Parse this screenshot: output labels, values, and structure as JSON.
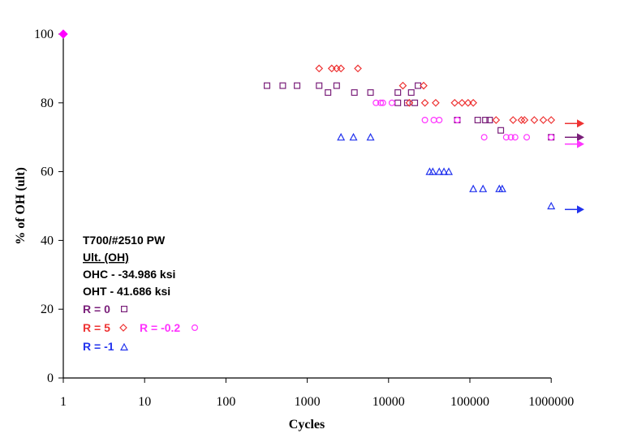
{
  "chart_data": {
    "type": "scatter",
    "title": "",
    "xlabel": "Cycles",
    "ylabel": "% of OH (ult)",
    "xscale": "log",
    "xlim": [
      1,
      1000000
    ],
    "ylim": [
      0,
      100
    ],
    "x_ticks": [
      "1",
      "10",
      "100",
      "1000",
      "10000",
      "100000",
      "1000000"
    ],
    "y_ticks": [
      "0",
      "20",
      "40",
      "60",
      "80",
      "100"
    ],
    "grid": false,
    "legend_position": "lower-left",
    "series": [
      {
        "name": "R = 0",
        "marker": "square",
        "color": "#7a1f7a",
        "points": [
          [
            320,
            85
          ],
          [
            500,
            85
          ],
          [
            750,
            85
          ],
          [
            1400,
            85
          ],
          [
            1800,
            83
          ],
          [
            2300,
            85
          ],
          [
            3800,
            83
          ],
          [
            6000,
            83
          ],
          [
            13000,
            83
          ],
          [
            13000,
            80
          ],
          [
            17000,
            80
          ],
          [
            19000,
            83
          ],
          [
            21000,
            80
          ],
          [
            23000,
            85
          ],
          [
            70000,
            75
          ],
          [
            125000,
            75
          ],
          [
            155000,
            75
          ],
          [
            175000,
            75
          ],
          [
            240000,
            72
          ],
          [
            1000000,
            70
          ]
        ],
        "runout": {
          "y": 70,
          "color": "#7a1f7a"
        }
      },
      {
        "name": "R = 5",
        "marker": "diamond",
        "color": "#ee3333",
        "points": [
          [
            1400,
            90
          ],
          [
            2000,
            90
          ],
          [
            2300,
            90
          ],
          [
            2600,
            90
          ],
          [
            4200,
            90
          ],
          [
            15000,
            85
          ],
          [
            18000,
            80
          ],
          [
            27000,
            85
          ],
          [
            28000,
            80
          ],
          [
            38000,
            80
          ],
          [
            65000,
            80
          ],
          [
            80000,
            80
          ],
          [
            95000,
            80
          ],
          [
            110000,
            80
          ],
          [
            210000,
            75
          ],
          [
            340000,
            75
          ],
          [
            430000,
            75
          ],
          [
            470000,
            75
          ],
          [
            620000,
            75
          ],
          [
            800000,
            75
          ],
          [
            1000000,
            75
          ]
        ],
        "runout": {
          "y": 74,
          "color": "#ee3333"
        }
      },
      {
        "name": "R = -0.2",
        "marker": "circle",
        "color": "#ff33ff",
        "points": [
          [
            7000,
            80
          ],
          [
            8000,
            80
          ],
          [
            8500,
            80
          ],
          [
            11000,
            80
          ],
          [
            28000,
            75
          ],
          [
            36000,
            75
          ],
          [
            42000,
            75
          ],
          [
            70000,
            75
          ],
          [
            150000,
            70
          ],
          [
            280000,
            70
          ],
          [
            320000,
            70
          ],
          [
            360000,
            70
          ],
          [
            500000,
            70
          ],
          [
            1000000,
            70
          ]
        ],
        "runout": {
          "y": 68,
          "color": "#ff33ff"
        }
      },
      {
        "name": "R = -1",
        "marker": "triangle",
        "color": "#2233ee",
        "points": [
          [
            2600,
            70
          ],
          [
            3700,
            70
          ],
          [
            6000,
            70
          ],
          [
            32000,
            60
          ],
          [
            35000,
            60
          ],
          [
            42000,
            60
          ],
          [
            48000,
            60
          ],
          [
            55000,
            60
          ],
          [
            110000,
            55
          ],
          [
            145000,
            55
          ],
          [
            230000,
            55
          ],
          [
            250000,
            55
          ],
          [
            1000000,
            50
          ]
        ],
        "runout": {
          "y": 49,
          "color": "#2233ee"
        }
      },
      {
        "name": "Ult. (OH)",
        "marker": "dot",
        "color": "#ff00ff",
        "points": [
          [
            1,
            100
          ]
        ]
      }
    ],
    "annotation": {
      "line1": "T700/#2510 PW",
      "line2": "Ult. (OH)",
      "line3": "OHC - -34.986 ksi",
      "line4": "OHT - 41.686 ksi",
      "legend_r0": "R = 0",
      "legend_r5": "R = 5",
      "legend_rm02": "R = -0.2",
      "legend_rm1": "R = -1"
    }
  }
}
